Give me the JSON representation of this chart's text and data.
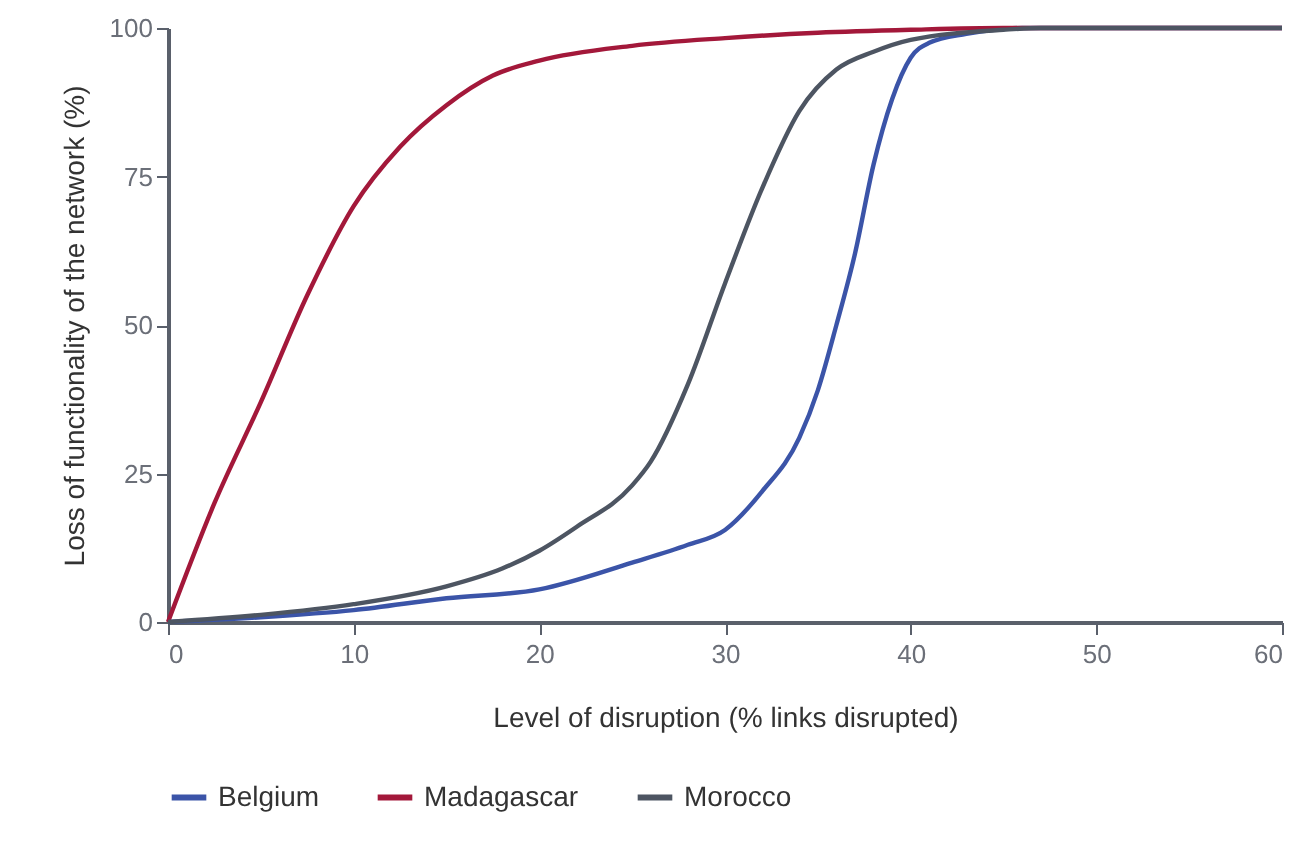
{
  "chart_data": {
    "type": "line",
    "xlabel": "Level of disruption (% links disrupted)",
    "ylabel": "Loss of functionality of the network (%)",
    "xlim": [
      0,
      60
    ],
    "xticks": [
      0,
      10,
      20,
      30,
      40,
      50,
      60
    ],
    "ylim": [
      0,
      100
    ],
    "yticks": [
      0,
      25,
      50,
      75,
      100
    ],
    "grid": false,
    "legend": "bottom",
    "marker": "none",
    "line_style": "solid",
    "series": [
      {
        "name": "Belgium",
        "color": "#3b54a8",
        "x": [
          0,
          5,
          10,
          15,
          20,
          25,
          28,
          30,
          32,
          34,
          35,
          36,
          37,
          38,
          39,
          40,
          41,
          43,
          46,
          60
        ],
        "values": [
          0,
          0.8,
          2,
          4,
          5.5,
          10,
          13,
          15.5,
          22,
          31,
          39,
          50,
          62,
          77,
          88,
          95,
          97.5,
          99,
          100,
          100
        ]
      },
      {
        "name": "Madagascar",
        "color": "#a3183a",
        "x": [
          0,
          2.5,
          5,
          7.5,
          10,
          12.5,
          15,
          17.5,
          20,
          25,
          30,
          35,
          40,
          45,
          60
        ],
        "values": [
          0,
          20,
          37,
          55,
          70,
          80,
          87,
          92,
          94.5,
          97,
          98.3,
          99.2,
          99.7,
          100,
          100
        ]
      },
      {
        "name": "Morocco",
        "color": "#4d5562",
        "x": [
          0,
          5,
          10,
          15,
          18,
          20,
          22,
          25,
          26,
          28,
          30,
          32,
          34,
          36,
          38,
          40,
          45,
          47,
          60
        ],
        "values": [
          0,
          1.2,
          3,
          6,
          9,
          12,
          16,
          23,
          27,
          40,
          57,
          73,
          86,
          93,
          96,
          98,
          99.7,
          100,
          100
        ]
      }
    ]
  }
}
